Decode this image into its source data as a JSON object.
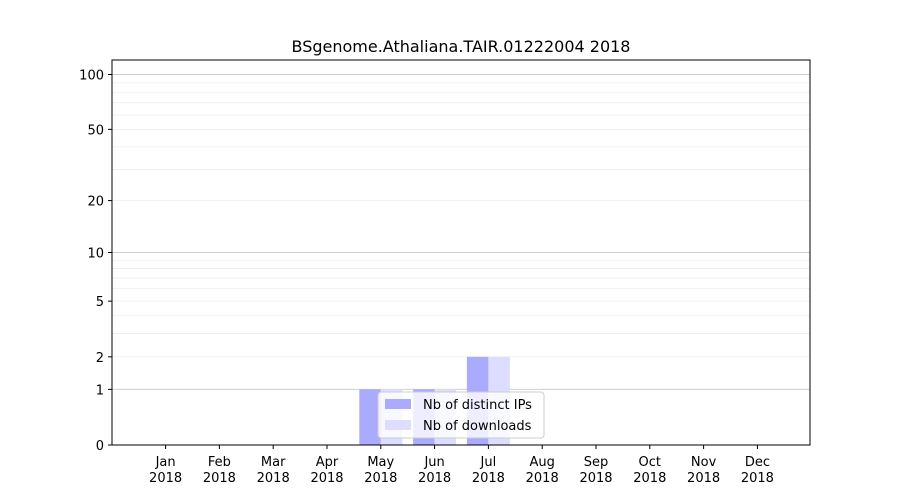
{
  "chart_data": {
    "type": "bar",
    "title": "BSgenome.Athaliana.TAIR.01222004 2018",
    "xlabel": "",
    "ylabel": "",
    "categories": [
      [
        "Jan",
        "2018"
      ],
      [
        "Feb",
        "2018"
      ],
      [
        "Mar",
        "2018"
      ],
      [
        "Apr",
        "2018"
      ],
      [
        "May",
        "2018"
      ],
      [
        "Jun",
        "2018"
      ],
      [
        "Jul",
        "2018"
      ],
      [
        "Aug",
        "2018"
      ],
      [
        "Sep",
        "2018"
      ],
      [
        "Oct",
        "2018"
      ],
      [
        "Nov",
        "2018"
      ],
      [
        "Dec",
        "2018"
      ]
    ],
    "series": [
      {
        "name": "Nb of distinct IPs",
        "color": "#aaaaff",
        "values": [
          0,
          0,
          0,
          0,
          1,
          1,
          2,
          0,
          0,
          0,
          0,
          0
        ]
      },
      {
        "name": "Nb of downloads",
        "color": "#ddddff",
        "values": [
          0,
          0,
          0,
          0,
          1,
          1,
          2,
          0,
          0,
          0,
          0,
          0
        ]
      }
    ],
    "yscale": "log1p",
    "ylim": [
      0,
      120
    ],
    "yticks": [
      0,
      1,
      2,
      5,
      10,
      20,
      50,
      100
    ],
    "grid": true,
    "legend": "lower center"
  }
}
